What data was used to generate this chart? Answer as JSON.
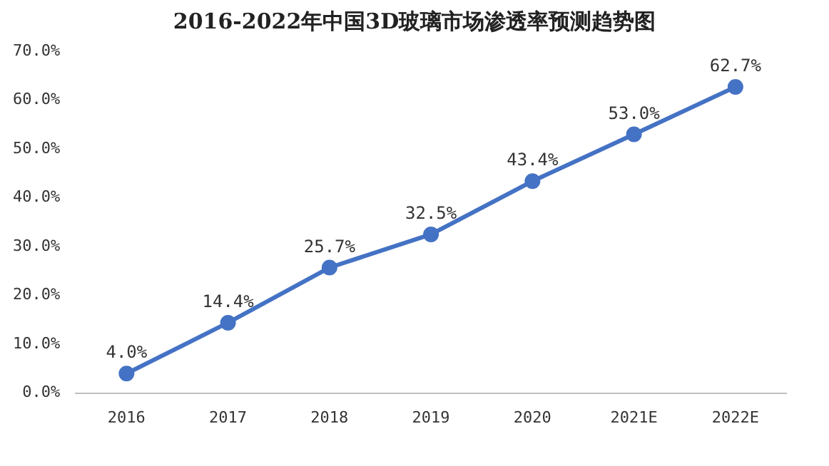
{
  "chart_data": {
    "type": "line",
    "title": "2016-2022年中国3D玻璃市场渗透率预测趋势图",
    "categories": [
      "2016",
      "2017",
      "2018",
      "2019",
      "2020",
      "2021E",
      "2022E"
    ],
    "series": [
      {
        "color": "#4472c4",
        "values": [
          4.0,
          14.4,
          25.7,
          32.5,
          43.4,
          53.0,
          62.7
        ],
        "value_labels": [
          "4.0%",
          "14.4%",
          "25.7%",
          "32.5%",
          "43.4%",
          "53.0%",
          "62.7%"
        ]
      }
    ],
    "ylim": [
      0,
      70
    ],
    "yticks": [
      {
        "value": 0,
        "label": "0.0%"
      },
      {
        "value": 10,
        "label": "10.0%"
      },
      {
        "value": 20,
        "label": "20.0%"
      },
      {
        "value": 30,
        "label": "30.0%"
      },
      {
        "value": 40,
        "label": "40.0%"
      },
      {
        "value": 50,
        "label": "50.0%"
      },
      {
        "value": 60,
        "label": "60.0%"
      },
      {
        "value": 70,
        "label": "70.0%"
      }
    ],
    "grid": false,
    "legend": false,
    "marker": "circle",
    "line_style": "solid"
  }
}
